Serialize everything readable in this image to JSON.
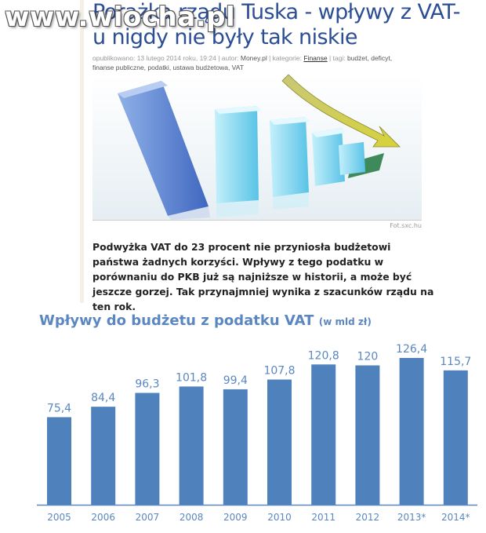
{
  "watermark": "www.wiocha.pl",
  "article": {
    "title": "Porażka rządu Tuska - wpływy z VAT-u nigdy nie były tak niskie",
    "meta_line1_prefix": "opublikowano: 13 lutego 2014 roku, 19:24 | autor: ",
    "meta_author": "Money.pl",
    "meta_cat_prefix": " | kategorie: ",
    "meta_category": "Finanse",
    "meta_tags_prefix": " | tagi: ",
    "meta_tags_a": "budżet, deficyt,",
    "meta_tags_b": "finanse publiczne, podatki, ustawa budżetowa, VAT",
    "photo_credit": "Fot.sxc.hu",
    "lead": "Podwyżka VAT do 23 procent nie przyniosła budżetowi państwa żadnych korzyści. Wpływy z tego podatku w porównaniu do PKB już są najniższe w historii, a może być jeszcze gorzej. Tak przynajmniej wynika z szacunków rządu na ten rok."
  },
  "colors": {
    "bar": "#4f81bd",
    "axis": "#5b87c1",
    "label": "#5b87c1",
    "title": "#5b87c1",
    "headline": "#2c4e94"
  },
  "chart_data": {
    "type": "bar",
    "title": "Wpływy do budżetu z podatku VAT",
    "unit": "(w mld zł)",
    "categories": [
      "2005",
      "2006",
      "2007",
      "2008",
      "2009",
      "2010",
      "2011",
      "2012",
      "2013*",
      "2014*"
    ],
    "values": [
      75.4,
      84.4,
      96.3,
      101.8,
      99.4,
      107.8,
      120.8,
      120,
      126.4,
      115.7
    ],
    "value_labels": [
      "75,4",
      "84,4",
      "96,3",
      "101,8",
      "99,4",
      "107,8",
      "120,8",
      "120",
      "126,4",
      "115,7"
    ],
    "ylim": [
      0,
      126.4
    ],
    "grid": false,
    "legend": "none"
  }
}
